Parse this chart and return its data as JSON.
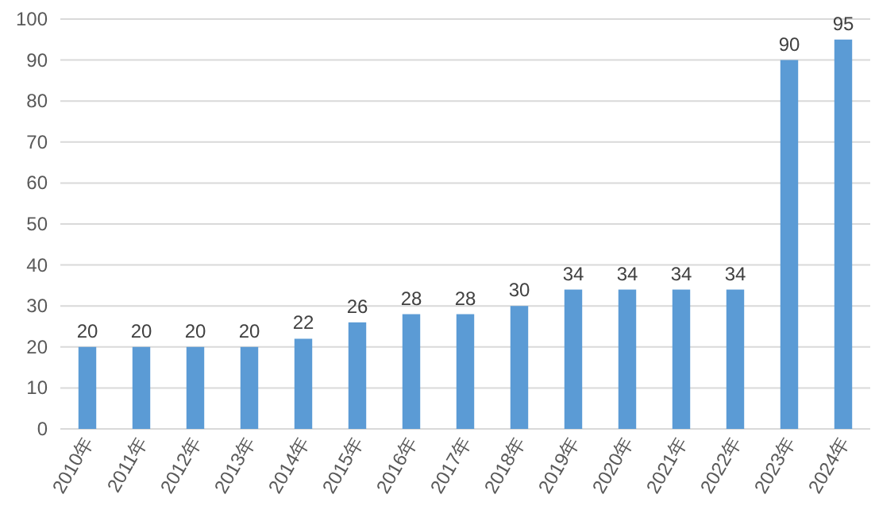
{
  "chart_data": {
    "type": "bar",
    "categories": [
      "2010年",
      "2011年",
      "2012年",
      "2013年",
      "2014年",
      "2015年",
      "2016年",
      "2017年",
      "2018年",
      "2019年",
      "2020年",
      "2021年",
      "2022年",
      "2023年",
      "2024年"
    ],
    "values": [
      20,
      20,
      20,
      20,
      22,
      26,
      28,
      28,
      30,
      34,
      34,
      34,
      34,
      90,
      95
    ],
    "color": "#5b9bd5",
    "ylim": [
      0,
      100
    ],
    "yticks": [
      0,
      10,
      20,
      30,
      40,
      50,
      60,
      70,
      80,
      90,
      100
    ],
    "grid": "y",
    "data_labels": true
  }
}
